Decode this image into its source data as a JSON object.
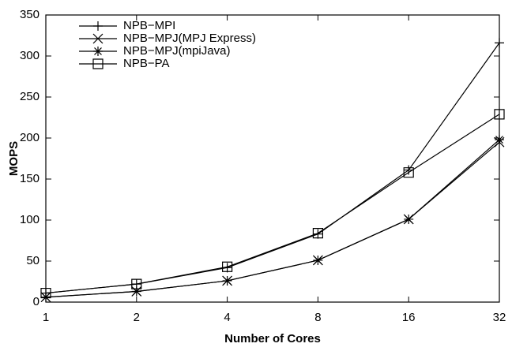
{
  "chart_data": {
    "type": "line",
    "x_label": "Number of Cores",
    "y_label": "MOPS",
    "categories": [
      "1",
      "2",
      "4",
      "8",
      "16",
      "32"
    ],
    "series": [
      {
        "name": "NPB−MPI",
        "color": "#000000",
        "marker": "plus",
        "values": [
          11,
          22,
          42,
          83,
          161,
          316
        ]
      },
      {
        "name": "NPB−MPJ(MPJ Express)",
        "color": "#000000",
        "marker": "cross",
        "values": [
          6,
          13,
          26,
          51,
          101,
          195
        ]
      },
      {
        "name": "NPB−MPJ(mpiJava)",
        "color": "#000000",
        "marker": "star",
        "values": [
          6,
          13,
          26,
          51,
          101,
          198
        ]
      },
      {
        "name": "NPB−PA",
        "color": "#000000",
        "marker": "square",
        "values": [
          11,
          22,
          43,
          84,
          158,
          229
        ]
      }
    ],
    "ylim": [
      0,
      350
    ],
    "yticks": [
      0,
      50,
      100,
      150,
      200,
      250,
      300,
      350
    ],
    "legend": "upper-left"
  }
}
